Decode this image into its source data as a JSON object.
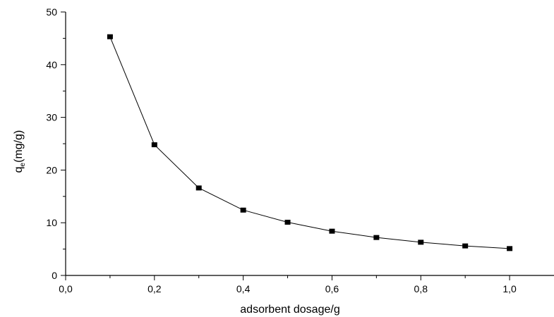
{
  "chart_data": {
    "type": "line",
    "title": "",
    "xlabel": "adsorbent dosage/g",
    "ylabel": {
      "main": "q",
      "subscript": "e",
      "unit": "(mg/g)"
    },
    "xlim": [
      0.0,
      1.1
    ],
    "ylim": [
      0,
      50
    ],
    "x_ticks": [
      0.0,
      0.2,
      0.4,
      0.6,
      0.8,
      1.0
    ],
    "x_tick_labels": [
      "0,0",
      "0,2",
      "0,4",
      "0,6",
      "0,8",
      "1,0"
    ],
    "y_ticks": [
      0,
      10,
      20,
      30,
      40,
      50
    ],
    "y_tick_labels": [
      "0",
      "10",
      "20",
      "30",
      "40",
      "50"
    ],
    "grid": false,
    "legend": "none",
    "series": [
      {
        "x": [
          0.1,
          0.2,
          0.3,
          0.4,
          0.5,
          0.6,
          0.7,
          0.8,
          0.9,
          1.0
        ],
        "values": [
          45.3,
          24.8,
          16.6,
          12.4,
          10.1,
          8.4,
          7.2,
          6.3,
          5.6,
          5.1
        ],
        "color": "#000000",
        "marker": "square"
      }
    ]
  }
}
